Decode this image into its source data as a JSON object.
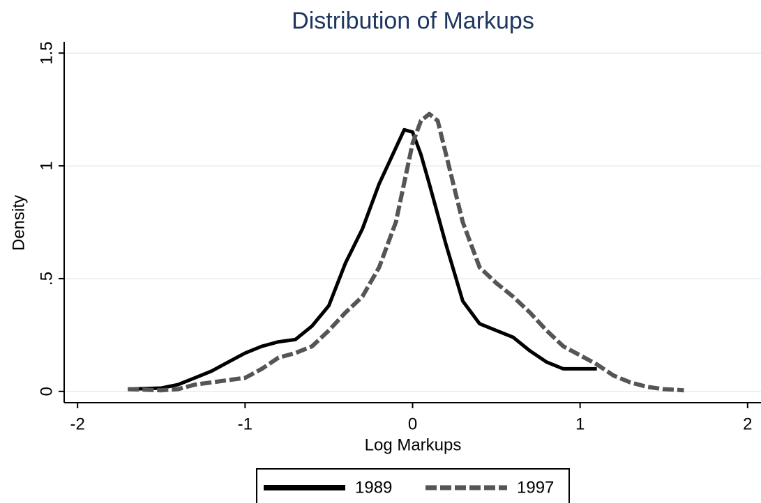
{
  "chart_data": {
    "type": "line",
    "title": "Distribution of Markups",
    "x_label": "Log Markups",
    "y_label": "Density",
    "xlim": [
      -2.08,
      2.08
    ],
    "ylim": [
      -0.05,
      1.55
    ],
    "xticks": [
      -2,
      -1,
      0,
      1,
      2
    ],
    "yticks": [
      0,
      {
        "value": 0.5,
        "label": ".5"
      },
      1,
      1.5
    ],
    "grid": true,
    "legend": "bottom",
    "series": [
      {
        "name": "1989",
        "color": "#000000",
        "dashed": false,
        "x": [
          -1.7,
          -1.5,
          -1.4,
          -1.3,
          -1.2,
          -1.1,
          -1.0,
          -0.9,
          -0.8,
          -0.7,
          -0.6,
          -0.5,
          -0.4,
          -0.3,
          -0.2,
          -0.1,
          -0.05,
          0,
          0.05,
          0.1,
          0.2,
          0.3,
          0.4,
          0.5,
          0.6,
          0.7,
          0.8,
          0.9,
          1.0,
          1.1
        ],
        "values": [
          0.01,
          0.015,
          0.03,
          0.06,
          0.09,
          0.13,
          0.17,
          0.2,
          0.22,
          0.23,
          0.29,
          0.38,
          0.57,
          0.72,
          0.92,
          1.08,
          1.16,
          1.15,
          1.05,
          0.92,
          0.65,
          0.4,
          0.3,
          0.27,
          0.24,
          0.18,
          0.13,
          0.1,
          0.1,
          0.1
        ]
      },
      {
        "name": "1997",
        "color": "#555555",
        "dashed": true,
        "x": [
          -1.7,
          -1.5,
          -1.4,
          -1.3,
          -1.2,
          -1.1,
          -1.0,
          -0.9,
          -0.8,
          -0.7,
          -0.6,
          -0.5,
          -0.4,
          -0.3,
          -0.2,
          -0.1,
          0,
          0.05,
          0.1,
          0.15,
          0.2,
          0.3,
          0.4,
          0.5,
          0.6,
          0.7,
          0.8,
          0.9,
          1.0,
          1.1,
          1.2,
          1.3,
          1.4,
          1.5,
          1.62
        ],
        "values": [
          0.01,
          0.005,
          0.01,
          0.03,
          0.04,
          0.05,
          0.06,
          0.1,
          0.15,
          0.17,
          0.2,
          0.27,
          0.35,
          0.42,
          0.55,
          0.75,
          1.1,
          1.2,
          1.23,
          1.2,
          1.05,
          0.75,
          0.55,
          0.48,
          0.42,
          0.35,
          0.27,
          0.2,
          0.16,
          0.12,
          0.07,
          0.04,
          0.02,
          0.01,
          0.005
        ]
      }
    ]
  }
}
